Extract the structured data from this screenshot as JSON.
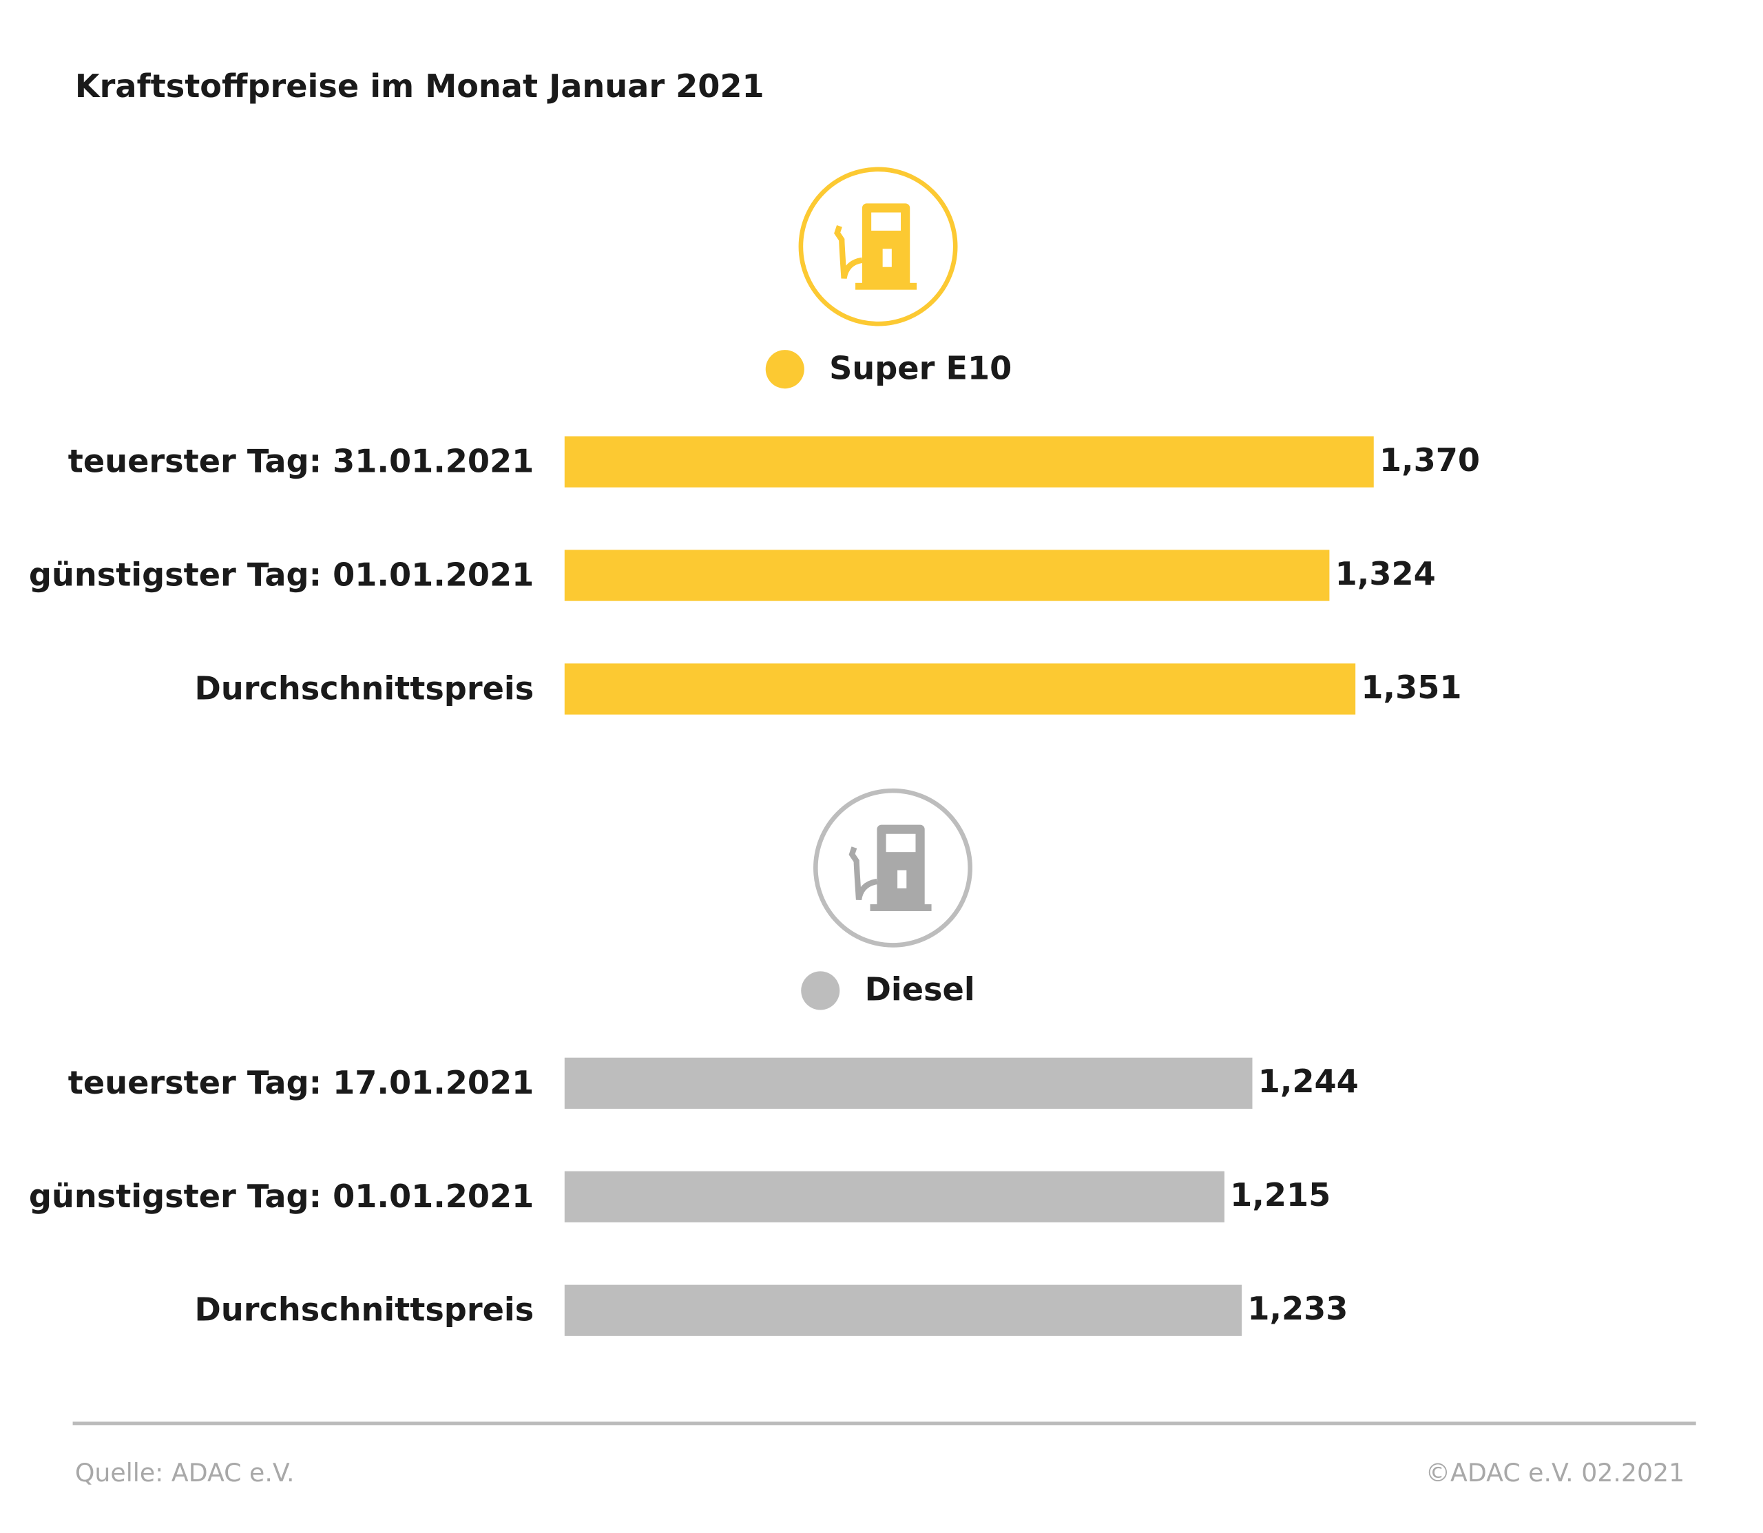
{
  "header": {
    "title": "Kraftstoffpreise im Monat Januar 2021"
  },
  "chart_data": [
    {
      "type": "bar",
      "orientation": "horizontal",
      "categories": [
        "teuerster Tag: 31.01.2021",
        "günstigster Tag: 01.01.2021",
        "Durchschnittspreis"
      ],
      "series": [
        {
          "name": "Super E10",
          "color": "#fcc932",
          "values": [
            1.37,
            1.324,
            1.351
          ],
          "value_labels": [
            "1,370",
            "1,324",
            "1,351"
          ]
        }
      ],
      "xlim": [
        0.53,
        1.6
      ]
    },
    {
      "type": "bar",
      "orientation": "horizontal",
      "categories": [
        "teuerster Tag: 17.01.2021",
        "günstigster Tag: 01.01.2021",
        "Durchschnittspreis"
      ],
      "series": [
        {
          "name": "Diesel",
          "color": "#bdbdbd",
          "values": [
            1.244,
            1.215,
            1.233
          ],
          "value_labels": [
            "1,244",
            "1,215",
            "1,233"
          ]
        }
      ],
      "xlim": [
        0.53,
        1.6
      ]
    }
  ],
  "footer": {
    "source": "Quelle: ADAC e.V.",
    "copyright": "©ADAC e.V. 02.2021"
  }
}
